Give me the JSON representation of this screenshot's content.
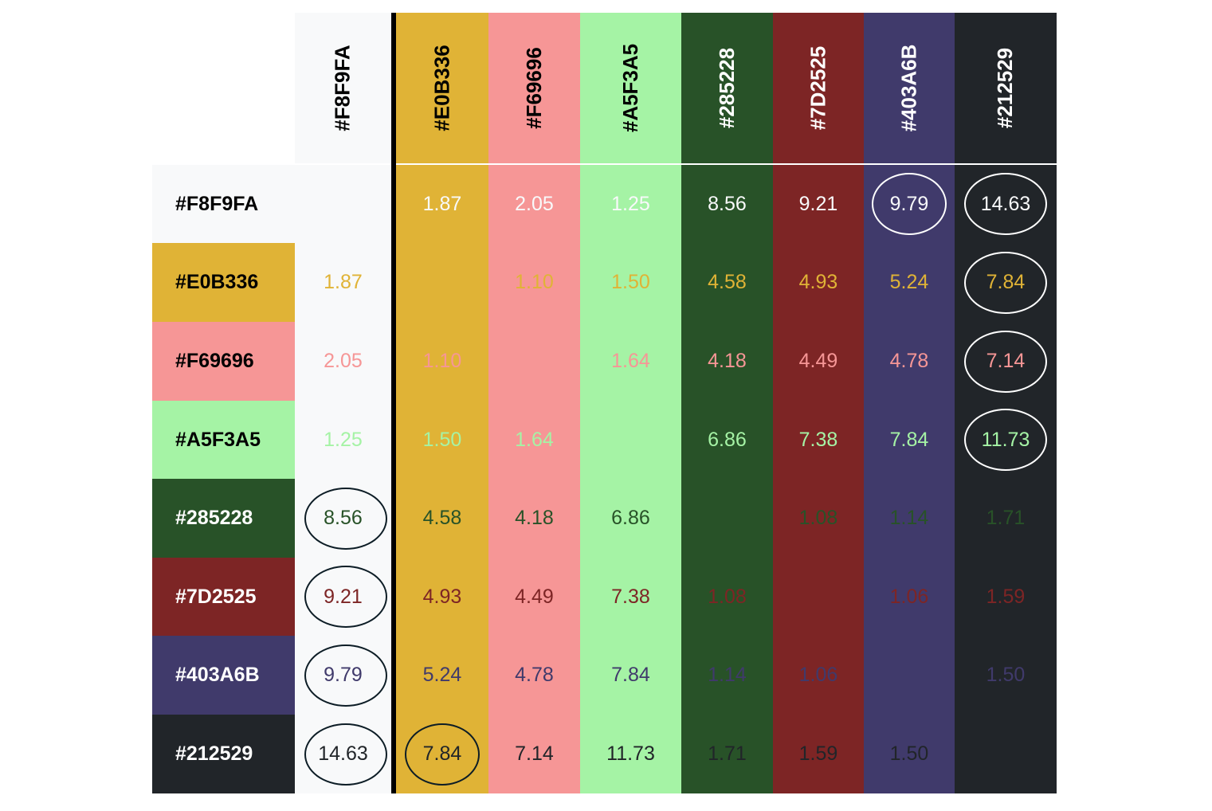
{
  "swatches": [
    {
      "hex": "#F8F9FA",
      "label": "#F8F9FA",
      "ink": "#000000"
    },
    {
      "hex": "#E0B336",
      "label": "#E0B336",
      "ink": "#000000"
    },
    {
      "hex": "#F69696",
      "label": "#F69696",
      "ink": "#000000"
    },
    {
      "hex": "#A5F3A5",
      "label": "#A5F3A5",
      "ink": "#000000"
    },
    {
      "hex": "#285228",
      "label": "#285228",
      "ink": "#ffffff"
    },
    {
      "hex": "#7D2525",
      "label": "#7D2525",
      "ink": "#ffffff"
    },
    {
      "hex": "#403A6B",
      "label": "#403A6B",
      "ink": "#ffffff"
    },
    {
      "hex": "#212529",
      "label": "#212529",
      "ink": "#ffffff"
    }
  ],
  "contrast_matrix": [
    [
      "",
      "1.87",
      "2.05",
      "1.25",
      "8.56",
      "9.21",
      "9.79",
      "14.63"
    ],
    [
      "1.87",
      "",
      "1.10",
      "1.50",
      "4.58",
      "4.93",
      "5.24",
      "7.84"
    ],
    [
      "2.05",
      "1.10",
      "",
      "1.64",
      "4.18",
      "4.49",
      "4.78",
      "7.14"
    ],
    [
      "1.25",
      "1.50",
      "1.64",
      "",
      "6.86",
      "7.38",
      "7.84",
      "11.73"
    ],
    [
      "8.56",
      "4.58",
      "4.18",
      "6.86",
      "",
      "1.08",
      "1.14",
      "1.71"
    ],
    [
      "9.21",
      "4.93",
      "4.49",
      "7.38",
      "1.08",
      "",
      "1.06",
      "1.59"
    ],
    [
      "9.79",
      "5.24",
      "4.78",
      "7.84",
      "1.14",
      "1.06",
      "",
      "1.50"
    ],
    [
      "14.63",
      "7.84",
      "7.14",
      "11.73",
      "1.71",
      "1.59",
      "1.50",
      ""
    ]
  ],
  "highlighted_cells": [
    [
      0,
      6
    ],
    [
      0,
      7
    ],
    [
      1,
      7
    ],
    [
      2,
      7
    ],
    [
      3,
      7
    ],
    [
      4,
      0
    ],
    [
      5,
      0
    ],
    [
      6,
      0
    ],
    [
      7,
      0
    ],
    [
      7,
      1
    ]
  ],
  "highlight_color": "#0d1d26"
}
